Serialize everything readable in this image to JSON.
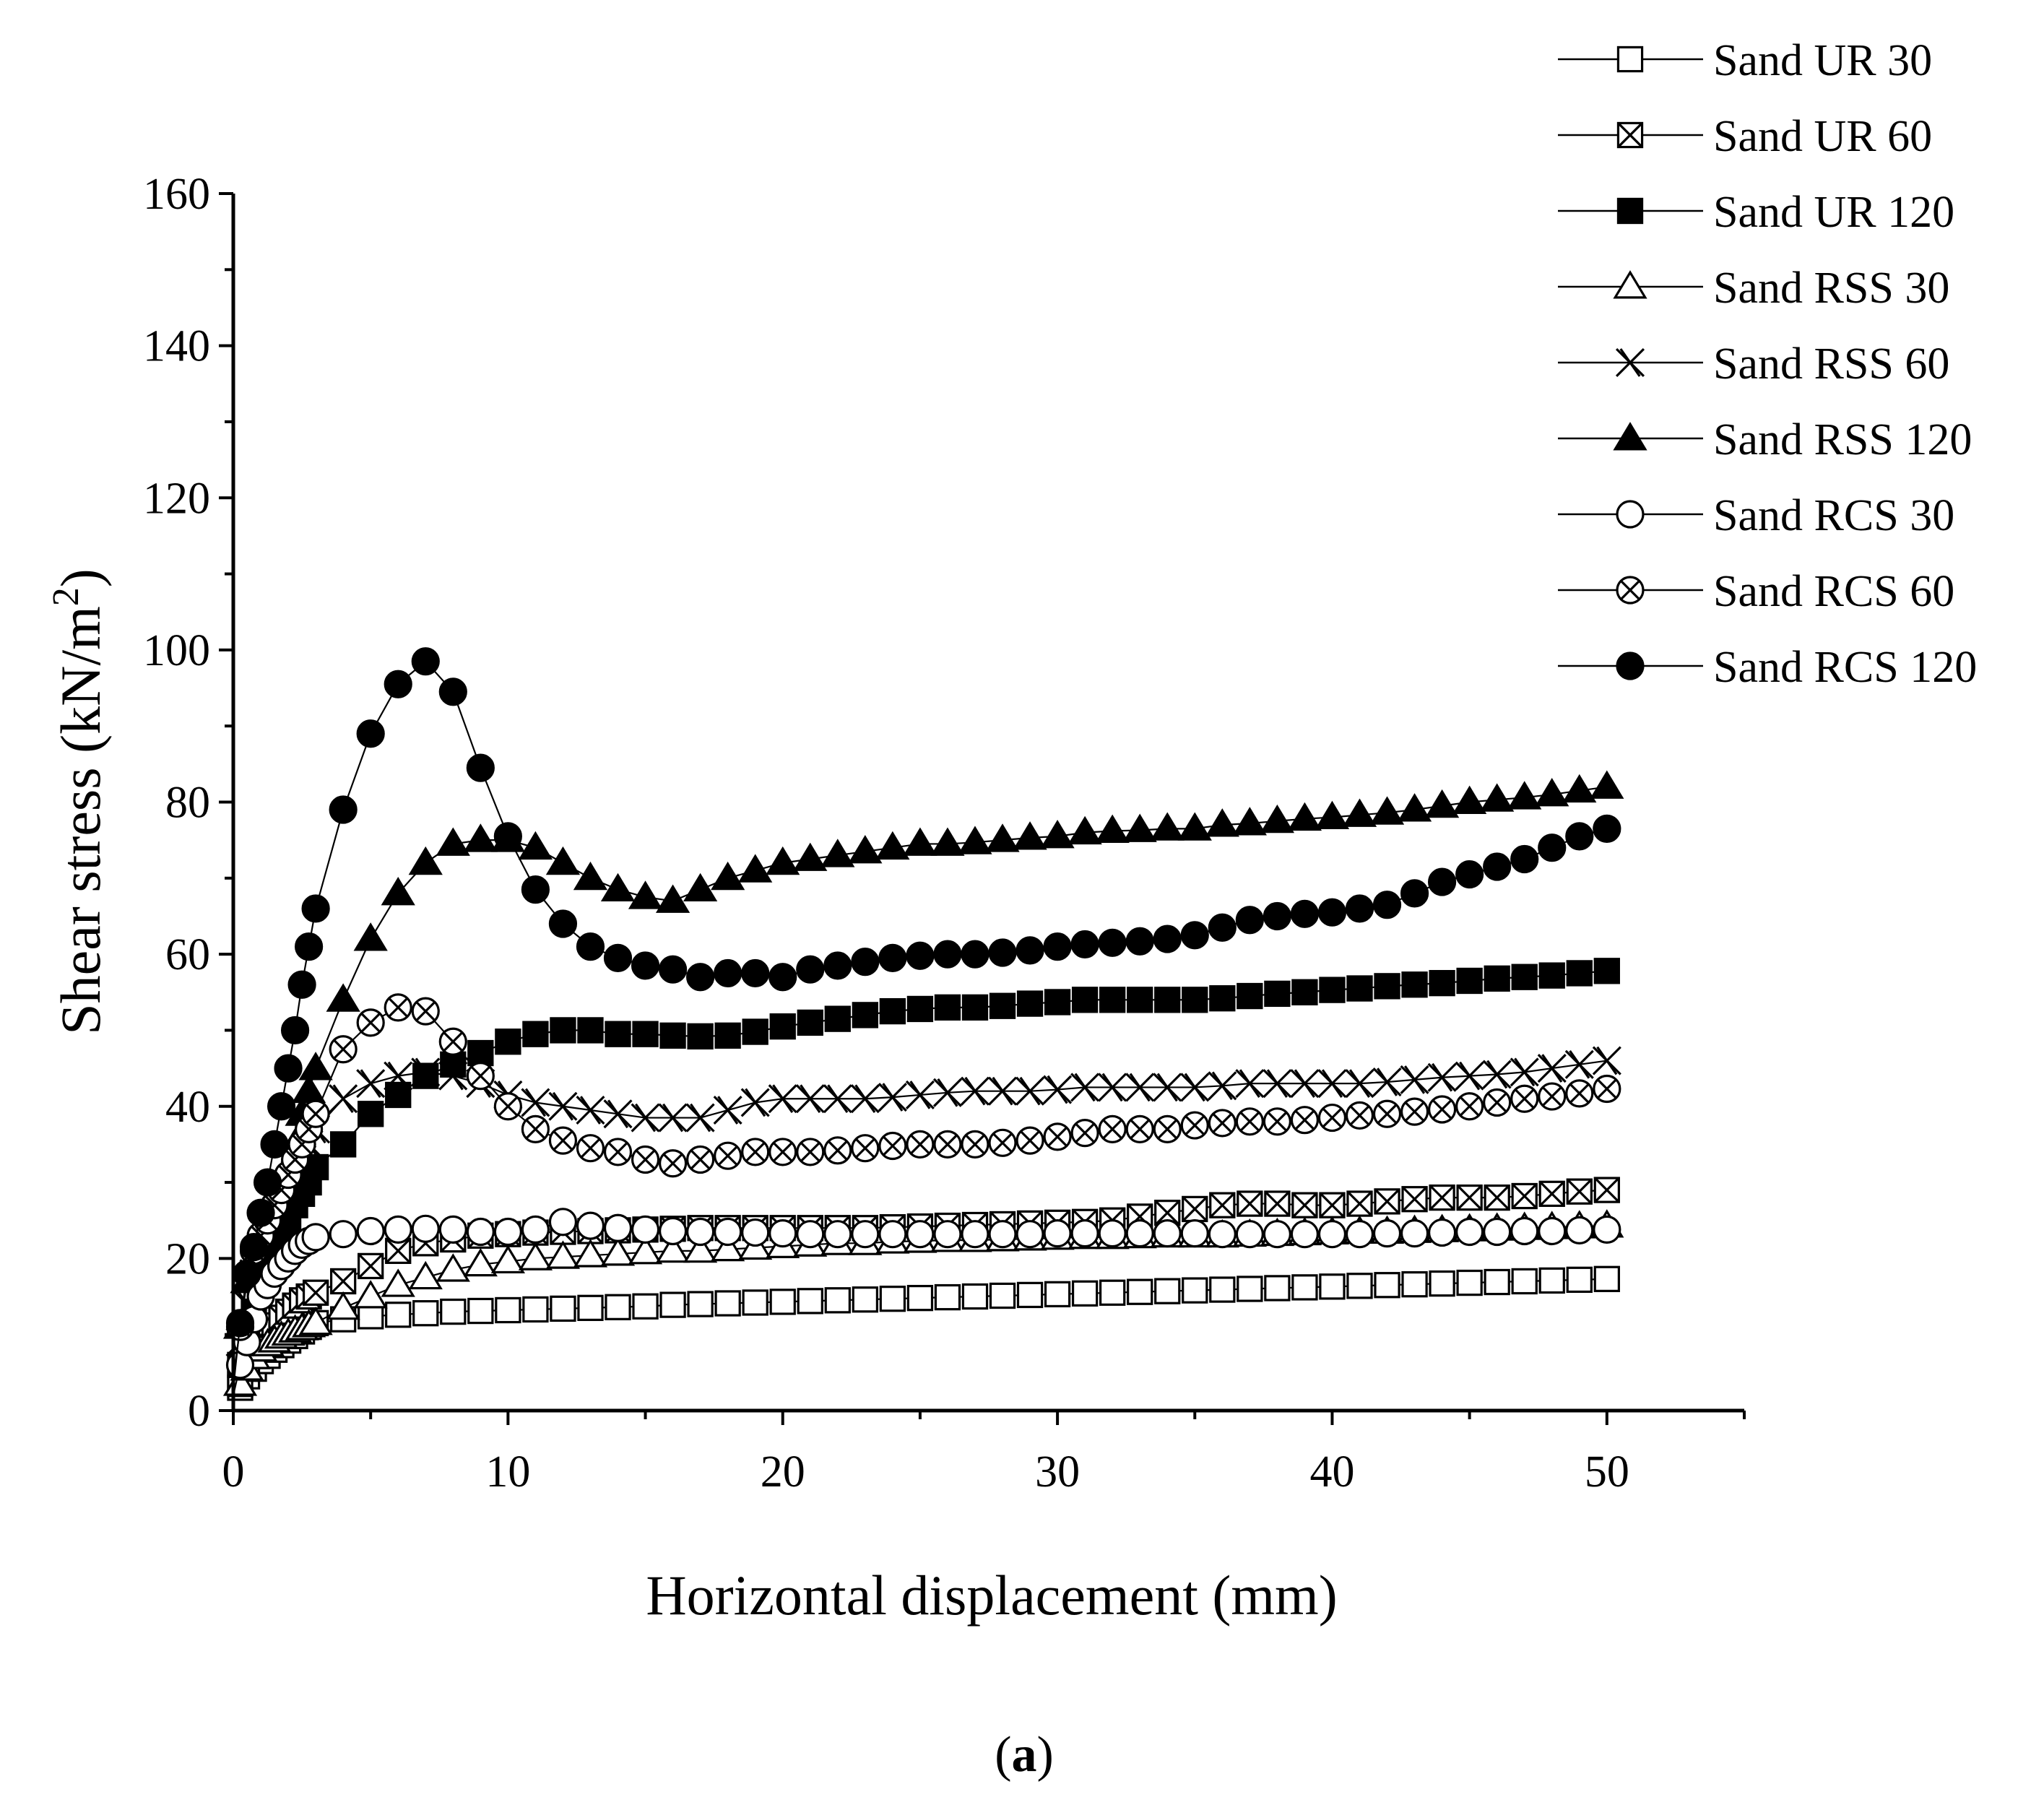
{
  "panel_label": {
    "open": "(",
    "letter": "a",
    "close": ")"
  },
  "chart_data": {
    "type": "line",
    "title": "",
    "xlabel": "Horizontal displacement (mm)",
    "ylabel": {
      "main": "Shear stress (kN/m",
      "sup": "2",
      "close": ")"
    },
    "xlim": [
      0,
      55
    ],
    "ylim": [
      0,
      160
    ],
    "xticks": [
      0,
      10,
      20,
      30,
      40,
      50
    ],
    "yticks": [
      0,
      20,
      40,
      60,
      80,
      100,
      120,
      140,
      160
    ],
    "legend_position": "top-right",
    "series": [
      {
        "name": "Sand UR 30",
        "marker": "square-open",
        "x": [
          0,
          0.25,
          0.5,
          0.75,
          1,
          1.25,
          1.5,
          1.75,
          2,
          2.25,
          2.5,
          2.75,
          3,
          4,
          5,
          6,
          7,
          8,
          9,
          10,
          11,
          12,
          13,
          14,
          15,
          16,
          17,
          18,
          19,
          20,
          21,
          22,
          23,
          24,
          25,
          26,
          27,
          28,
          29,
          30,
          31,
          32,
          33,
          34,
          35,
          36,
          37,
          38,
          39,
          40,
          41,
          42,
          43,
          44,
          45,
          46,
          47,
          48,
          49,
          50
        ],
        "y": [
          1.5,
          3,
          4.5,
          5.5,
          6.5,
          7.2,
          8,
          8.6,
          9.2,
          9.8,
          10.4,
          11,
          11.5,
          12,
          12.4,
          12.6,
          12.8,
          13,
          13.1,
          13.2,
          13.3,
          13.4,
          13.5,
          13.6,
          13.7,
          13.9,
          14,
          14.1,
          14.2,
          14.3,
          14.4,
          14.5,
          14.6,
          14.7,
          14.8,
          14.9,
          15,
          15.1,
          15.2,
          15.3,
          15.4,
          15.5,
          15.6,
          15.7,
          15.8,
          15.9,
          16,
          16.1,
          16.2,
          16.3,
          16.4,
          16.5,
          16.6,
          16.7,
          16.8,
          16.9,
          17,
          17.1,
          17.2,
          17.3
        ]
      },
      {
        "name": "Sand UR 60",
        "marker": "square-cross",
        "x": [
          0,
          0.25,
          0.5,
          0.75,
          1,
          1.25,
          1.5,
          1.75,
          2,
          2.25,
          2.5,
          2.75,
          3,
          4,
          5,
          6,
          7,
          8,
          9,
          10,
          11,
          12,
          13,
          14,
          15,
          16,
          17,
          18,
          19,
          20,
          21,
          22,
          23,
          24,
          25,
          26,
          27,
          28,
          29,
          30,
          31,
          32,
          33,
          34,
          35,
          36,
          37,
          38,
          39,
          40,
          41,
          42,
          43,
          44,
          45,
          46,
          47,
          48,
          49,
          50
        ],
        "y": [
          1.5,
          3.5,
          5.5,
          7.5,
          9,
          10.2,
          11.2,
          12.2,
          13,
          13.8,
          14.5,
          15,
          15.5,
          17,
          19,
          21,
          22,
          22.5,
          23,
          23.2,
          23.4,
          23.5,
          23.6,
          23.7,
          23.8,
          23.9,
          24,
          24,
          24,
          24,
          24,
          24,
          24,
          24.1,
          24.2,
          24.3,
          24.4,
          24.5,
          24.6,
          24.7,
          24.8,
          25,
          25.5,
          26,
          26.5,
          27,
          27.2,
          27.2,
          27,
          27,
          27.2,
          27.5,
          27.8,
          28,
          28,
          28,
          28.2,
          28.5,
          28.8,
          29
        ]
      },
      {
        "name": "Sand UR 120",
        "marker": "square-filled",
        "x": [
          0,
          0.25,
          0.5,
          0.75,
          1,
          1.25,
          1.5,
          1.75,
          2,
          2.25,
          2.5,
          2.75,
          3,
          4,
          5,
          6,
          7,
          8,
          9,
          10,
          11,
          12,
          13,
          14,
          15,
          16,
          17,
          18,
          19,
          20,
          21,
          22,
          23,
          24,
          25,
          26,
          27,
          28,
          29,
          30,
          31,
          32,
          33,
          34,
          35,
          36,
          37,
          38,
          39,
          40,
          41,
          42,
          43,
          44,
          45,
          46,
          47,
          48,
          49,
          50
        ],
        "y": [
          2,
          6,
          10,
          13,
          16,
          18.5,
          21,
          23,
          25,
          27,
          28.5,
          30,
          32,
          35,
          39,
          41.5,
          44,
          45.5,
          47,
          48.5,
          49.5,
          50,
          50,
          49.5,
          49.5,
          49.3,
          49.2,
          49.3,
          49.8,
          50.5,
          51,
          51.5,
          52,
          52.5,
          52.8,
          53,
          53,
          53.2,
          53.5,
          53.7,
          54,
          54,
          54,
          54,
          54,
          54.2,
          54.5,
          54.8,
          55,
          55.3,
          55.5,
          55.8,
          56,
          56.2,
          56.5,
          56.8,
          57,
          57.2,
          57.5,
          57.8
        ]
      },
      {
        "name": "Sand RSS 30",
        "marker": "triangle-open",
        "x": [
          0,
          0.25,
          0.5,
          0.75,
          1,
          1.25,
          1.5,
          1.75,
          2,
          2.25,
          2.5,
          2.75,
          3,
          4,
          5,
          6,
          7,
          8,
          9,
          10,
          11,
          12,
          13,
          14,
          15,
          16,
          17,
          18,
          19,
          20,
          21,
          22,
          23,
          24,
          25,
          26,
          27,
          28,
          29,
          30,
          31,
          32,
          33,
          34,
          35,
          36,
          37,
          38,
          39,
          40,
          41,
          42,
          43,
          44,
          45,
          46,
          47,
          48,
          49,
          50
        ],
        "y": [
          1.5,
          3.5,
          5.5,
          7,
          8,
          8.7,
          9.2,
          9.7,
          10.1,
          10.5,
          10.8,
          11.2,
          11.5,
          13.5,
          15,
          16.5,
          17.5,
          18.5,
          19.2,
          19.6,
          20,
          20.2,
          20.4,
          20.6,
          20.8,
          21,
          21,
          21.2,
          21.4,
          21.6,
          21.8,
          22,
          22,
          22.2,
          22.3,
          22.4,
          22.4,
          22.5,
          22.6,
          22.7,
          22.8,
          22.8,
          22.9,
          23,
          23,
          23,
          23.1,
          23.2,
          23.3,
          23.4,
          23.5,
          23.5,
          23.6,
          23.7,
          23.8,
          23.9,
          24,
          24.1,
          24.2,
          24.3
        ]
      },
      {
        "name": "Sand RSS 60",
        "marker": "cross-x",
        "x": [
          0,
          0.25,
          0.5,
          0.75,
          1,
          1.25,
          1.5,
          1.75,
          2,
          2.25,
          2.5,
          2.75,
          3,
          4,
          5,
          6,
          7,
          8,
          9,
          10,
          11,
          12,
          13,
          14,
          15,
          16,
          17,
          18,
          19,
          20,
          21,
          22,
          23,
          24,
          25,
          26,
          27,
          28,
          29,
          30,
          31,
          32,
          33,
          34,
          35,
          36,
          37,
          38,
          39,
          40,
          41,
          42,
          43,
          44,
          45,
          46,
          47,
          48,
          49,
          50
        ],
        "y": [
          3,
          9,
          14,
          18,
          21,
          23,
          25,
          27,
          29,
          31,
          33,
          35,
          37,
          41,
          43,
          44,
          44.5,
          44,
          43,
          41.5,
          40.5,
          40,
          39.5,
          39,
          38.5,
          38.5,
          38.5,
          39.5,
          40.5,
          41,
          41,
          41,
          41,
          41.2,
          41.5,
          41.8,
          42,
          42,
          42,
          42.2,
          42.5,
          42.5,
          42.5,
          42.5,
          42.5,
          42.7,
          43,
          43,
          43,
          43,
          43,
          43.2,
          43.5,
          43.8,
          44,
          44.2,
          44.5,
          45,
          45.5,
          46
        ]
      },
      {
        "name": "Sand RSS 120",
        "marker": "triangle-filled",
        "x": [
          0,
          0.25,
          0.5,
          0.75,
          1,
          1.25,
          1.5,
          1.75,
          2,
          2.25,
          2.5,
          2.75,
          3,
          4,
          5,
          6,
          7,
          8,
          9,
          10,
          11,
          12,
          13,
          14,
          15,
          16,
          17,
          18,
          19,
          20,
          21,
          22,
          23,
          24,
          25,
          26,
          27,
          28,
          29,
          30,
          31,
          32,
          33,
          34,
          35,
          36,
          37,
          38,
          39,
          40,
          41,
          42,
          43,
          44,
          45,
          46,
          47,
          48,
          49,
          50
        ],
        "y": [
          4,
          11,
          17,
          20,
          22,
          24,
          26,
          28,
          31,
          35,
          39,
          42,
          45,
          54,
          62,
          68,
          72,
          74.5,
          75,
          75,
          74,
          72,
          70,
          68.5,
          67.5,
          67,
          68.5,
          70,
          71,
          72,
          72.5,
          73,
          73.5,
          74,
          74.5,
          74.5,
          74.7,
          75,
          75.3,
          75.5,
          76,
          76.2,
          76.3,
          76.5,
          76.5,
          77,
          77.2,
          77.5,
          77.8,
          78,
          78.3,
          78.6,
          79,
          79.5,
          80,
          80.3,
          80.6,
          81,
          81.5,
          82
        ]
      },
      {
        "name": "Sand RCS 30",
        "marker": "circle-open",
        "x": [
          0,
          0.25,
          0.5,
          0.75,
          1,
          1.25,
          1.5,
          1.75,
          2,
          2.25,
          2.5,
          2.75,
          3,
          4,
          5,
          6,
          7,
          8,
          9,
          10,
          11,
          12,
          13,
          14,
          15,
          16,
          17,
          18,
          19,
          20,
          21,
          22,
          23,
          24,
          25,
          26,
          27,
          28,
          29,
          30,
          31,
          32,
          33,
          34,
          35,
          36,
          37,
          38,
          39,
          40,
          41,
          42,
          43,
          44,
          45,
          46,
          47,
          48,
          49,
          50
        ],
        "y": [
          2,
          6,
          9,
          12,
          15,
          16.5,
          18,
          19,
          20,
          21,
          21.8,
          22.3,
          22.8,
          23.2,
          23.6,
          23.8,
          23.9,
          23.8,
          23.5,
          23.5,
          23.8,
          24.8,
          24.3,
          24,
          23.8,
          23.6,
          23.5,
          23.5,
          23.4,
          23.3,
          23.2,
          23.2,
          23.2,
          23.2,
          23.2,
          23.2,
          23.2,
          23.2,
          23.2,
          23.3,
          23.3,
          23.3,
          23.3,
          23.3,
          23.3,
          23.2,
          23.2,
          23.2,
          23.2,
          23.2,
          23.2,
          23.3,
          23.3,
          23.4,
          23.5,
          23.5,
          23.6,
          23.6,
          23.7,
          23.8
        ]
      },
      {
        "name": "Sand RCS 60",
        "marker": "circle-cross",
        "x": [
          0,
          0.25,
          0.5,
          0.75,
          1,
          1.25,
          1.5,
          1.75,
          2,
          2.25,
          2.5,
          2.75,
          3,
          4,
          5,
          6,
          7,
          8,
          9,
          10,
          11,
          12,
          13,
          14,
          15,
          16,
          17,
          18,
          19,
          20,
          21,
          22,
          23,
          24,
          25,
          26,
          27,
          28,
          29,
          30,
          31,
          32,
          33,
          34,
          35,
          36,
          37,
          38,
          39,
          40,
          41,
          42,
          43,
          44,
          45,
          46,
          47,
          48,
          49,
          50
        ],
        "y": [
          4,
          11,
          18,
          21,
          23,
          25,
          27,
          29,
          31,
          33,
          35,
          37,
          39,
          47.5,
          51,
          53,
          52.5,
          48.5,
          44,
          40,
          37,
          35.5,
          34.5,
          34,
          33,
          32.5,
          33,
          33.5,
          34,
          34,
          34,
          34.2,
          34.5,
          34.8,
          35,
          35,
          35,
          35.2,
          35.5,
          36,
          36.5,
          37,
          37,
          37,
          37.5,
          37.8,
          38,
          38,
          38.2,
          38.5,
          38.8,
          39,
          39.3,
          39.6,
          40,
          40.5,
          41,
          41.3,
          41.7,
          42.3
        ]
      },
      {
        "name": "Sand RCS 120",
        "marker": "circle-filled",
        "x": [
          0,
          0.25,
          0.5,
          0.75,
          1,
          1.25,
          1.5,
          1.75,
          2,
          2.25,
          2.5,
          2.75,
          3,
          4,
          5,
          6,
          7,
          8,
          9,
          10,
          11,
          12,
          13,
          14,
          15,
          16,
          17,
          18,
          19,
          20,
          21,
          22,
          23,
          24,
          25,
          26,
          27,
          28,
          29,
          30,
          31,
          32,
          33,
          34,
          35,
          36,
          37,
          38,
          39,
          40,
          41,
          42,
          43,
          44,
          45,
          46,
          47,
          48,
          49,
          50
        ],
        "y": [
          3,
          11.5,
          18,
          21.5,
          26,
          30,
          35,
          40,
          45,
          50,
          56,
          61,
          66,
          79,
          89,
          95.5,
          98.5,
          94.5,
          84.5,
          75.5,
          68.5,
          64,
          61,
          59.5,
          58.5,
          58,
          57,
          57.5,
          57.5,
          57,
          58,
          58.5,
          59,
          59.5,
          59.8,
          60,
          60,
          60.2,
          60.5,
          61,
          61.3,
          61.5,
          61.7,
          62,
          62.5,
          63.5,
          64.5,
          65,
          65.3,
          65.5,
          66,
          66.5,
          68,
          69.5,
          70.5,
          71.5,
          72.5,
          74,
          75.5,
          76.5
        ]
      }
    ]
  }
}
